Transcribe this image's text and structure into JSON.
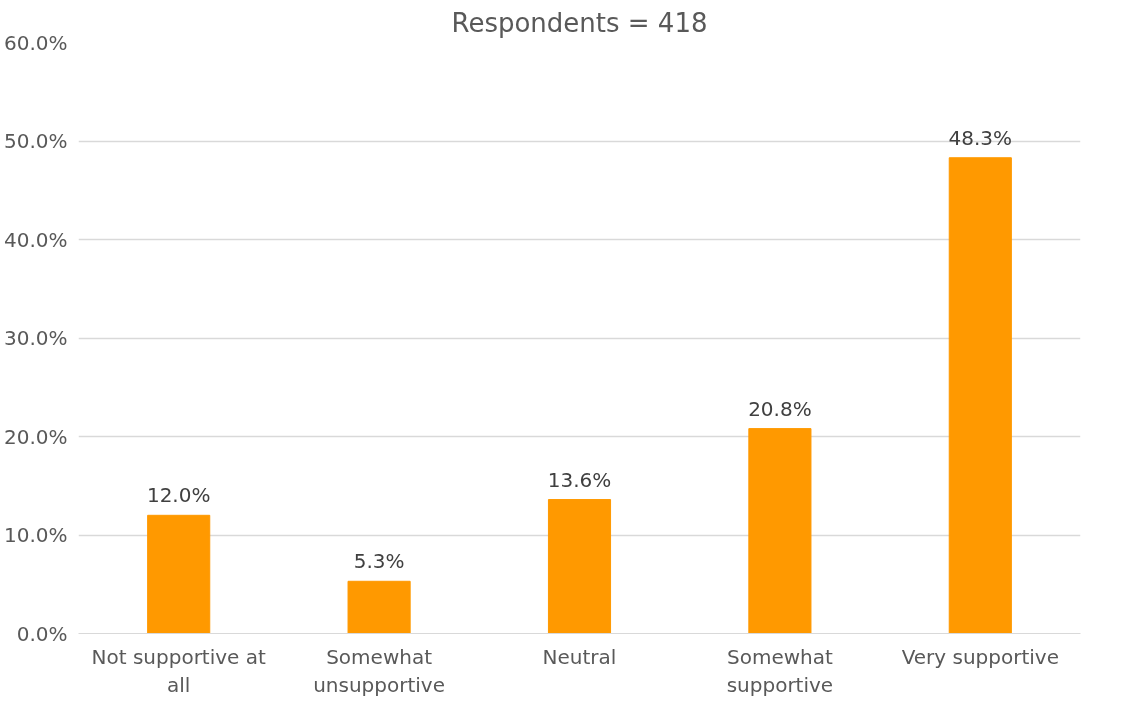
{
  "chart_data": {
    "type": "bar",
    "title": "Respondents = 418",
    "categories": [
      "Not supportive at all",
      "Somewhat unsupportive",
      "Neutral",
      "Somewhat supportive",
      "Very supportive"
    ],
    "values": [
      12.0,
      5.3,
      13.6,
      20.8,
      48.3
    ],
    "value_labels": [
      "12.0%",
      "5.3%",
      "13.6%",
      "20.8%",
      "48.3%"
    ],
    "color": "#ff9900",
    "ylim": [
      0,
      60
    ],
    "yticks": [
      {
        "value": 0,
        "label": "0.0%"
      },
      {
        "value": 10,
        "label": "10.0%"
      },
      {
        "value": 20,
        "label": "20.0%"
      },
      {
        "value": 30,
        "label": "30.0%"
      },
      {
        "value": 40,
        "label": "40.0%"
      },
      {
        "value": 50,
        "label": "50.0%"
      },
      {
        "value": 60,
        "label": "60.0%"
      }
    ],
    "grid": "y"
  }
}
